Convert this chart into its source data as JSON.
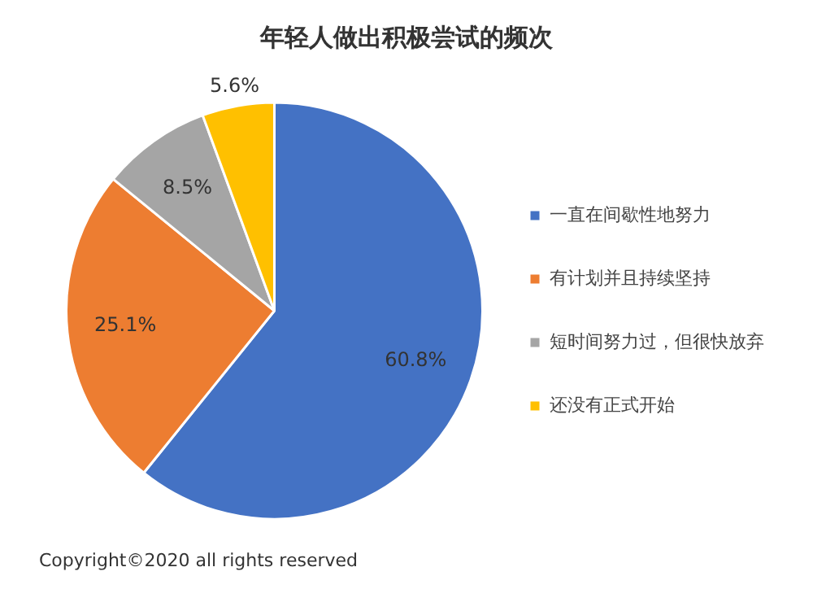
{
  "chart_data": {
    "type": "pie",
    "title": "年轻人做出积极尝试的频次",
    "categories": [
      "一直在间歇性地努力",
      "有计划并且持续坚持",
      "短时间努力过，但很快放弃",
      "还没有正式开始"
    ],
    "values": [
      60.8,
      25.1,
      8.5,
      5.6
    ],
    "colors": [
      "#4472c4",
      "#ed7d31",
      "#a5a5a5",
      "#ffc000"
    ],
    "value_labels": [
      "60.8%",
      "25.1%",
      "8.5%",
      "5.6%"
    ],
    "legend": "right",
    "annotations": [
      "Copyright©2020 all rights reserved"
    ]
  }
}
